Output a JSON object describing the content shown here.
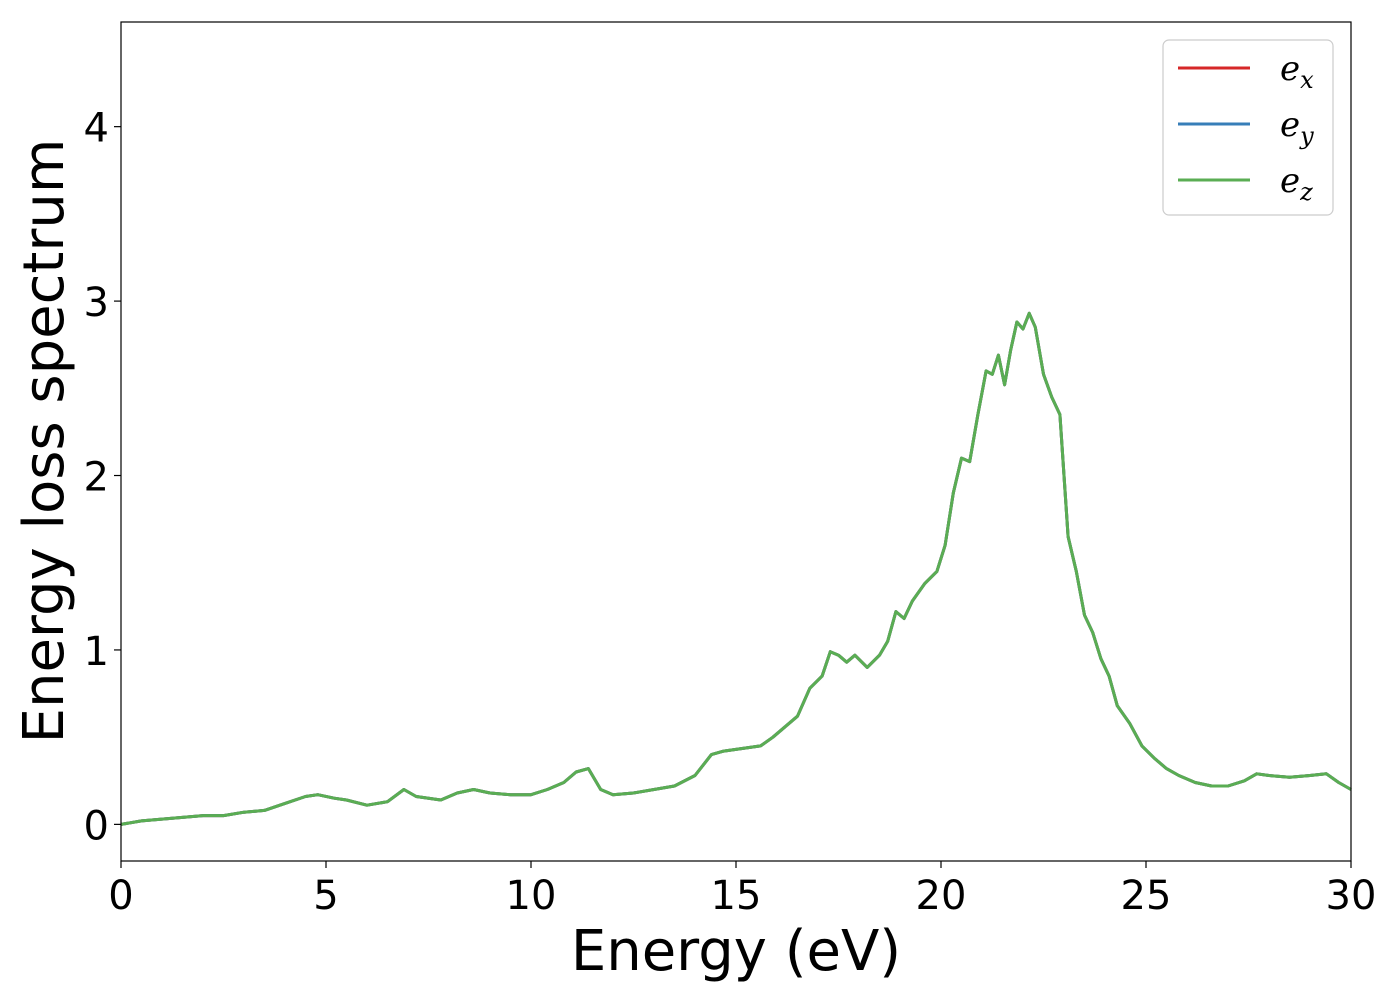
{
  "chart_data": {
    "type": "line",
    "xlabel": "Energy (eV)",
    "ylabel": "Energy loss spectrum",
    "xlim": [
      0,
      30
    ],
    "ylim": [
      -0.21,
      4.6
    ],
    "xticks": [
      0,
      5,
      10,
      15,
      20,
      25,
      30
    ],
    "yticks": [
      0,
      1,
      2,
      3,
      4
    ],
    "xtick_labels": [
      "0",
      "5",
      "10",
      "15",
      "20",
      "25",
      "30"
    ],
    "ytick_labels": [
      "0",
      "1",
      "2",
      "3",
      "4"
    ],
    "grid": false,
    "legend_position": "top-right",
    "x": [
      0,
      0.5,
      1.0,
      1.5,
      2.0,
      2.5,
      3.0,
      3.5,
      4.0,
      4.5,
      4.8,
      5.2,
      5.5,
      6.0,
      6.5,
      6.9,
      7.2,
      7.8,
      8.2,
      8.6,
      9.0,
      9.5,
      10.0,
      10.4,
      10.8,
      11.1,
      11.4,
      11.7,
      12.0,
      12.5,
      13.0,
      13.5,
      14.0,
      14.4,
      14.7,
      15.0,
      15.3,
      15.6,
      15.9,
      16.2,
      16.5,
      16.8,
      17.1,
      17.3,
      17.5,
      17.7,
      17.9,
      18.2,
      18.5,
      18.7,
      18.9,
      19.1,
      19.3,
      19.6,
      19.9,
      20.1,
      20.3,
      20.5,
      20.7,
      20.9,
      21.1,
      21.25,
      21.4,
      21.55,
      21.7,
      21.85,
      22.0,
      22.15,
      22.3,
      22.5,
      22.7,
      22.9,
      23.1,
      23.3,
      23.5,
      23.7,
      23.9,
      24.1,
      24.3,
      24.6,
      24.9,
      25.2,
      25.5,
      25.8,
      26.2,
      26.6,
      27.0,
      27.4,
      27.7,
      28.0,
      28.5,
      29.0,
      29.4,
      29.7,
      30.0
    ],
    "series": [
      {
        "name": "e_x",
        "legend_base": "e",
        "legend_sub": "x",
        "color": "#d62728",
        "values": [
          0.0,
          0.02,
          0.03,
          0.04,
          0.05,
          0.05,
          0.07,
          0.08,
          0.12,
          0.16,
          0.17,
          0.15,
          0.14,
          0.11,
          0.13,
          0.2,
          0.16,
          0.14,
          0.18,
          0.2,
          0.18,
          0.17,
          0.17,
          0.2,
          0.24,
          0.3,
          0.32,
          0.2,
          0.17,
          0.18,
          0.2,
          0.22,
          0.28,
          0.4,
          0.42,
          0.43,
          0.44,
          0.45,
          0.5,
          0.56,
          0.62,
          0.78,
          0.85,
          0.99,
          0.97,
          0.93,
          0.97,
          0.9,
          0.97,
          1.05,
          1.22,
          1.18,
          1.28,
          1.38,
          1.45,
          1.6,
          1.9,
          2.1,
          2.08,
          2.35,
          2.6,
          2.58,
          2.69,
          2.52,
          2.72,
          2.88,
          2.84,
          2.93,
          2.85,
          2.58,
          2.45,
          2.35,
          1.65,
          1.45,
          1.2,
          1.1,
          0.95,
          0.85,
          0.68,
          0.58,
          0.45,
          0.38,
          0.32,
          0.28,
          0.24,
          0.22,
          0.22,
          0.25,
          0.29,
          0.28,
          0.27,
          0.28,
          0.29,
          0.24,
          0.2
        ]
      },
      {
        "name": "e_y",
        "legend_base": "e",
        "legend_sub": "y",
        "color": "#377eb8",
        "values": [
          0.0,
          0.02,
          0.03,
          0.04,
          0.05,
          0.05,
          0.07,
          0.08,
          0.12,
          0.16,
          0.17,
          0.15,
          0.14,
          0.11,
          0.13,
          0.2,
          0.16,
          0.14,
          0.18,
          0.2,
          0.18,
          0.17,
          0.17,
          0.2,
          0.24,
          0.3,
          0.32,
          0.2,
          0.17,
          0.18,
          0.2,
          0.22,
          0.28,
          0.4,
          0.42,
          0.43,
          0.44,
          0.45,
          0.5,
          0.56,
          0.62,
          0.78,
          0.85,
          0.99,
          0.97,
          0.93,
          0.97,
          0.9,
          0.97,
          1.05,
          1.22,
          1.18,
          1.28,
          1.38,
          1.45,
          1.6,
          1.9,
          2.1,
          2.08,
          2.35,
          2.6,
          2.58,
          2.69,
          2.52,
          2.72,
          2.88,
          2.84,
          2.93,
          2.85,
          2.58,
          2.45,
          2.35,
          1.65,
          1.45,
          1.2,
          1.1,
          0.95,
          0.85,
          0.68,
          0.58,
          0.45,
          0.38,
          0.32,
          0.28,
          0.24,
          0.22,
          0.22,
          0.25,
          0.29,
          0.28,
          0.27,
          0.28,
          0.29,
          0.24,
          0.2
        ]
      },
      {
        "name": "e_z",
        "legend_base": "e",
        "legend_sub": "z",
        "color": "#5aad53",
        "values": [
          0.0,
          0.02,
          0.03,
          0.04,
          0.05,
          0.05,
          0.07,
          0.08,
          0.12,
          0.16,
          0.17,
          0.15,
          0.14,
          0.11,
          0.13,
          0.2,
          0.16,
          0.14,
          0.18,
          0.2,
          0.18,
          0.17,
          0.17,
          0.2,
          0.24,
          0.3,
          0.32,
          0.2,
          0.17,
          0.18,
          0.2,
          0.22,
          0.28,
          0.4,
          0.42,
          0.43,
          0.44,
          0.45,
          0.5,
          0.56,
          0.62,
          0.78,
          0.85,
          0.99,
          0.97,
          0.93,
          0.97,
          0.9,
          0.97,
          1.05,
          1.22,
          1.18,
          1.28,
          1.38,
          1.45,
          1.6,
          1.9,
          2.1,
          2.08,
          2.35,
          2.6,
          2.58,
          2.69,
          2.52,
          2.72,
          2.88,
          2.84,
          2.93,
          2.85,
          2.58,
          2.45,
          2.35,
          1.65,
          1.45,
          1.2,
          1.1,
          0.95,
          0.85,
          0.68,
          0.58,
          0.45,
          0.38,
          0.32,
          0.28,
          0.24,
          0.22,
          0.22,
          0.25,
          0.29,
          0.28,
          0.27,
          0.28,
          0.29,
          0.24,
          0.2
        ]
      }
    ]
  }
}
